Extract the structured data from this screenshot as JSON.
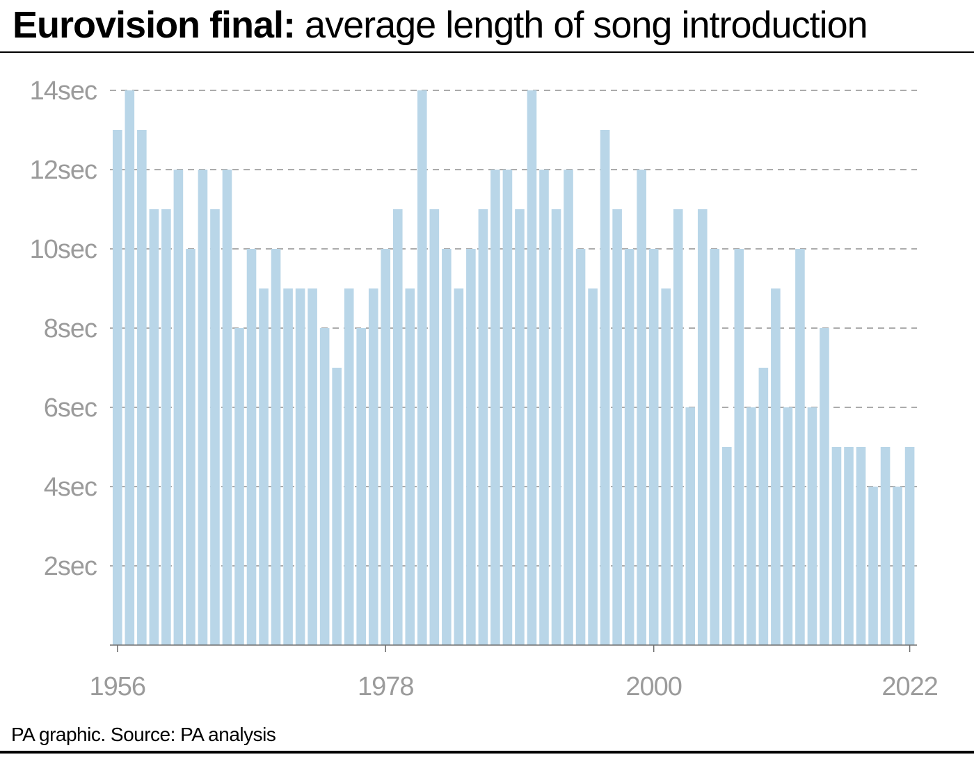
{
  "title": {
    "bold": "Eurovision final:",
    "rest": " average length of song introduction"
  },
  "source": "PA graphic. Source: PA analysis",
  "colors": {
    "bar": "#b9d6e8",
    "grid": "#8f8f8f",
    "axis": "#6e6e6e",
    "tick_text": "#9b9b9b"
  },
  "chart_data": {
    "type": "bar",
    "title": "Eurovision final: average length of song introduction",
    "ylabel": "",
    "xlabel": "",
    "unit": "sec",
    "ylim": [
      0,
      14
    ],
    "yticks": [
      2,
      4,
      6,
      8,
      10,
      12,
      14
    ],
    "ytick_labels": [
      "2sec",
      "4sec",
      "6sec",
      "8sec",
      "10sec",
      "12sec",
      "14sec"
    ],
    "xticks": [
      1956,
      1978,
      2000,
      2022
    ],
    "xtick_labels": [
      "1956",
      "1978",
      "2000",
      "2022"
    ],
    "grid": "horizontal dashed",
    "legend": "none",
    "categories": [
      1956,
      1957,
      1958,
      1959,
      1960,
      1961,
      1962,
      1963,
      1964,
      1965,
      1966,
      1967,
      1968,
      1969,
      1970,
      1971,
      1972,
      1973,
      1974,
      1975,
      1976,
      1977,
      1978,
      1979,
      1980,
      1981,
      1982,
      1983,
      1984,
      1985,
      1986,
      1987,
      1988,
      1989,
      1990,
      1991,
      1992,
      1993,
      1994,
      1995,
      1996,
      1997,
      1998,
      1999,
      2000,
      2001,
      2002,
      2003,
      2004,
      2005,
      2006,
      2007,
      2008,
      2009,
      2010,
      2011,
      2012,
      2013,
      2014,
      2015,
      2016,
      2017,
      2018,
      2019,
      2021,
      2022
    ],
    "values": [
      13,
      14,
      13,
      11,
      11,
      12,
      10,
      12,
      11,
      12,
      8,
      10,
      9,
      10,
      9,
      9,
      9,
      8,
      7,
      9,
      8,
      9,
      10,
      11,
      9,
      14,
      11,
      10,
      9,
      10,
      11,
      12,
      12,
      11,
      14,
      12,
      11,
      12,
      10,
      9,
      13,
      11,
      10,
      12,
      10,
      9,
      11,
      6,
      11,
      10,
      5,
      10,
      6,
      7,
      9,
      6,
      10,
      6,
      8,
      5,
      5,
      5,
      4,
      5,
      4,
      5
    ]
  }
}
